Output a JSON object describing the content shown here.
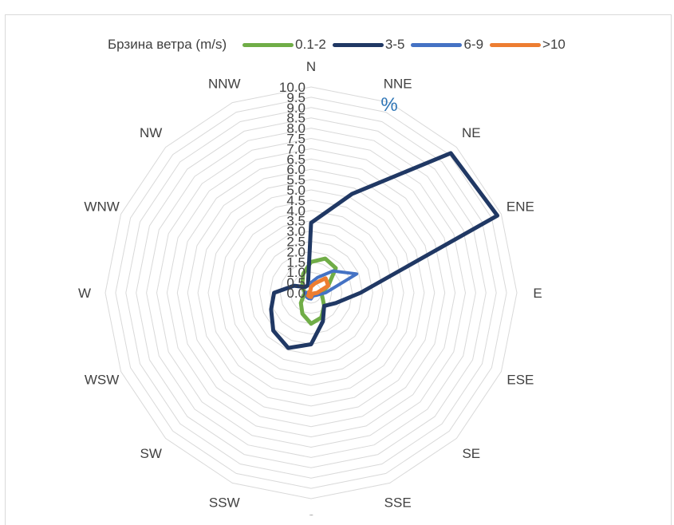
{
  "chart_data": {
    "type": "radar",
    "title": "",
    "legend": {
      "title": "Брзина ветра (m/s)",
      "position": "top"
    },
    "unit_label": "%",
    "directions": [
      "N",
      "NNE",
      "NE",
      "ENE",
      "E",
      "ESE",
      "SE",
      "SSE",
      "S",
      "SSW",
      "SW",
      "WSW",
      "W",
      "WNW",
      "NW",
      "NNW"
    ],
    "radial_axis": {
      "min": 0,
      "max": 10,
      "step": 0.5,
      "tick_labels": [
        "0.0",
        "0.5",
        "1.0",
        "1.5",
        "2.0",
        "2.5",
        "3.0",
        "3.5",
        "4.0",
        "4.5",
        "5.0",
        "5.5",
        "6.0",
        "6.5",
        "7.0",
        "7.5",
        "8.0",
        "8.5",
        "9.0",
        "9.5",
        "10.0"
      ]
    },
    "grid": true,
    "series": [
      {
        "name": "0.1-2",
        "color": "#70ad47",
        "values": [
          1.5,
          1.8,
          1.7,
          0.9,
          0.5,
          0.6,
          0.9,
          1.3,
          1.5,
          1.1,
          0.7,
          0.4,
          0.3,
          0.4,
          0.6,
          1.0
        ]
      },
      {
        "name": "3-5",
        "color": "#203864",
        "values": [
          3.4,
          5.2,
          9.6,
          9.8,
          2.4,
          1.3,
          0.9,
          1.5,
          2.5,
          2.9,
          2.6,
          2.1,
          1.8,
          0.9,
          0.4,
          0.4
        ]
      },
      {
        "name": "6-9",
        "color": "#4472c4",
        "values": [
          0.5,
          0.8,
          1.5,
          2.4,
          0.7,
          0.3,
          0.2,
          0.2,
          0.3,
          0.3,
          0.3,
          0.2,
          0.3,
          0.1,
          0.1,
          0.1
        ]
      },
      {
        "name": ">10",
        "color": "#ed7d31",
        "values": [
          0.3,
          0.5,
          1.0,
          0.9,
          0.3,
          0.1,
          0.1,
          0.1,
          0.2,
          0.2,
          0.2,
          0.1,
          0.1,
          0.1,
          0.1,
          0.1
        ]
      }
    ]
  }
}
